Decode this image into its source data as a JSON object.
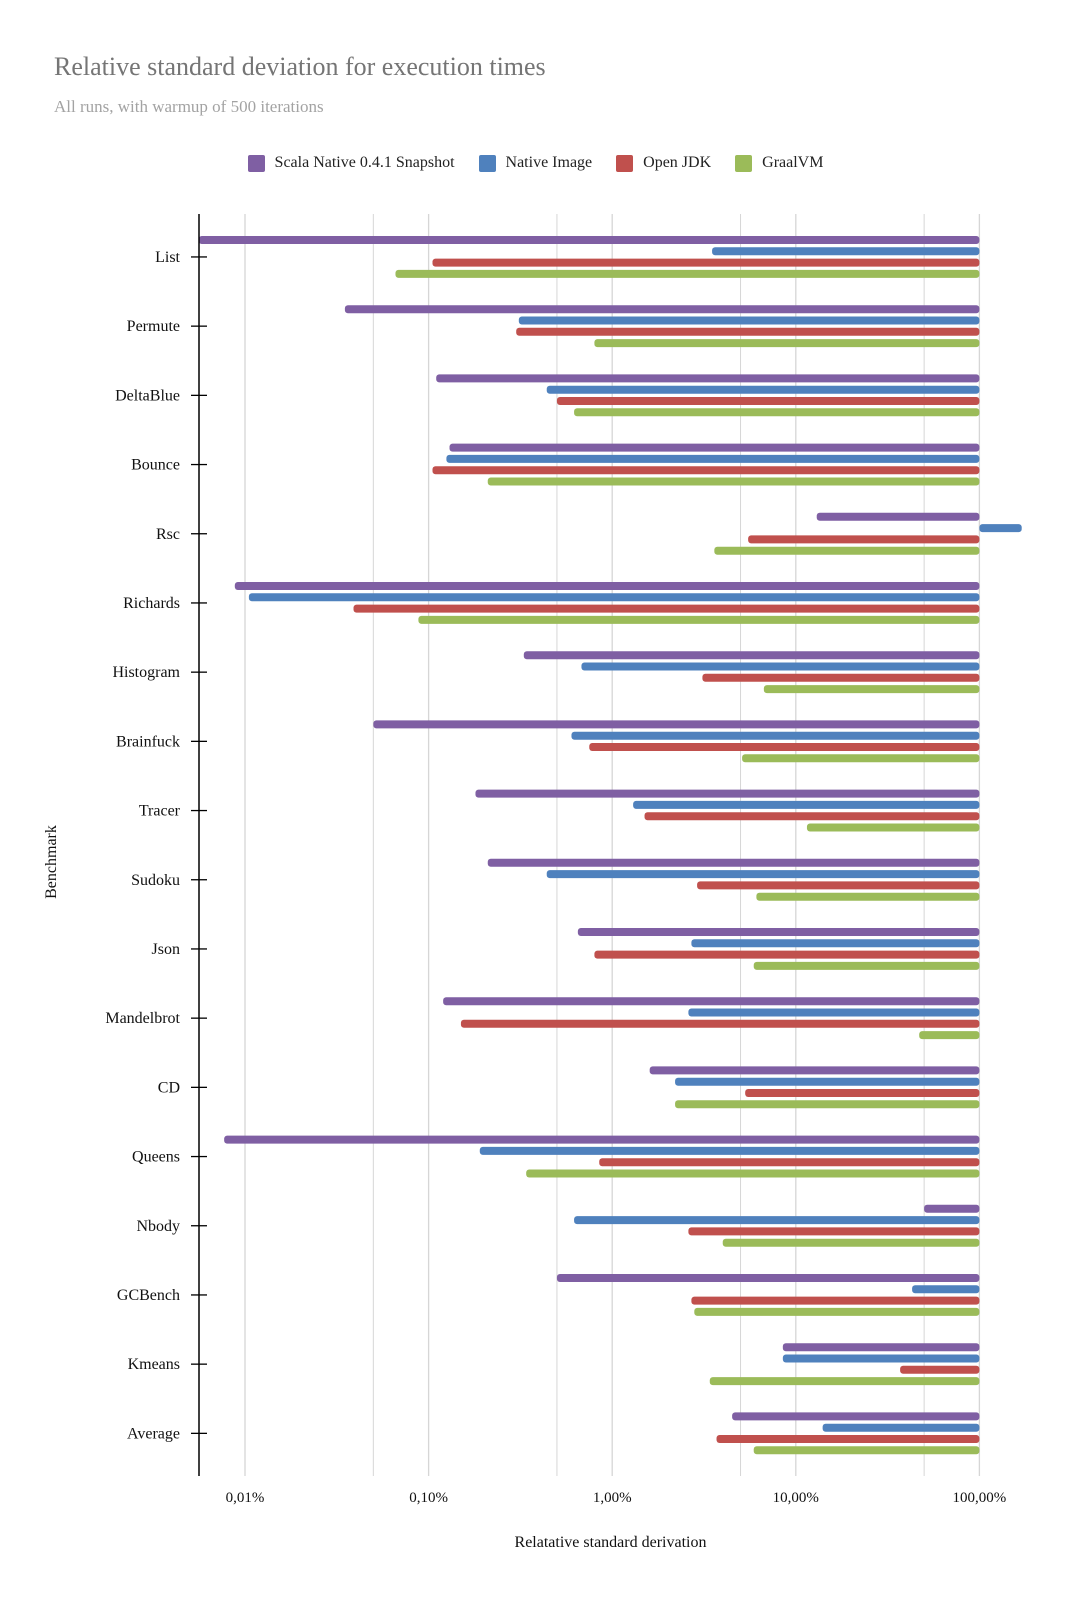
{
  "title": "Relative standard deviation for execution times",
  "subtitle": "All runs, with warmup of 500 iterations",
  "colors": {
    "scala_native": "#7f5fa3",
    "native_image": "#4f81bd",
    "open_jdk": "#c0504d",
    "graalvm": "#9bbb59",
    "grid": "#d6d6d6",
    "axis": "#000000"
  },
  "chart_data": {
    "type": "bar",
    "orientation": "horizontal",
    "x_scale": "log",
    "xlabel": "Relatative standard derivation",
    "ylabel": "Benchmark",
    "x_ticks": [
      {
        "value": 0.01,
        "label": "0,01%"
      },
      {
        "value": 0.1,
        "label": "0,10%"
      },
      {
        "value": 1,
        "label": "1,00%"
      },
      {
        "value": 10,
        "label": "10,00%"
      },
      {
        "value": 100,
        "label": "100,00%"
      }
    ],
    "xlim": [
      0.0056,
      230
    ],
    "legend_position": "top",
    "grid": true,
    "categories": [
      "List",
      "Permute",
      "DeltaBlue",
      "Bounce",
      "Rsc",
      "Richards",
      "Histogram",
      "Brainfuck",
      "Tracer",
      "Sudoku",
      "Json",
      "Mandelbrot",
      "CD",
      "Queens",
      "Nbody",
      "GCBench",
      "Kmeans",
      "Average"
    ],
    "series": [
      {
        "name": "Scala Native 0.4.1 Snapshot",
        "color_key": "scala_native",
        "values": [
          0.0056,
          0.035,
          0.11,
          0.13,
          13,
          0.0088,
          0.33,
          0.05,
          0.18,
          0.21,
          0.65,
          0.12,
          1.6,
          0.0077,
          50,
          0.5,
          8.5,
          4.5
        ]
      },
      {
        "name": "Native Image",
        "color_key": "native_image",
        "values": [
          3.5,
          0.31,
          0.44,
          0.125,
          170,
          0.0105,
          0.68,
          0.6,
          1.3,
          0.44,
          2.7,
          2.6,
          2.2,
          0.19,
          0.62,
          43,
          8.5,
          14
        ]
      },
      {
        "name": "Open JDK",
        "color_key": "open_jdk",
        "values": [
          0.105,
          0.3,
          0.5,
          0.105,
          5.5,
          0.039,
          3.1,
          0.75,
          1.5,
          2.9,
          0.8,
          0.15,
          5.3,
          0.85,
          2.6,
          2.7,
          37,
          3.7
        ]
      },
      {
        "name": "GraalVM",
        "color_key": "graalvm",
        "values": [
          0.066,
          0.8,
          0.62,
          0.21,
          3.6,
          0.088,
          6.7,
          5.1,
          11.5,
          6.1,
          5.9,
          47,
          2.2,
          0.34,
          4,
          2.8,
          3.4,
          5.9
        ]
      }
    ]
  }
}
